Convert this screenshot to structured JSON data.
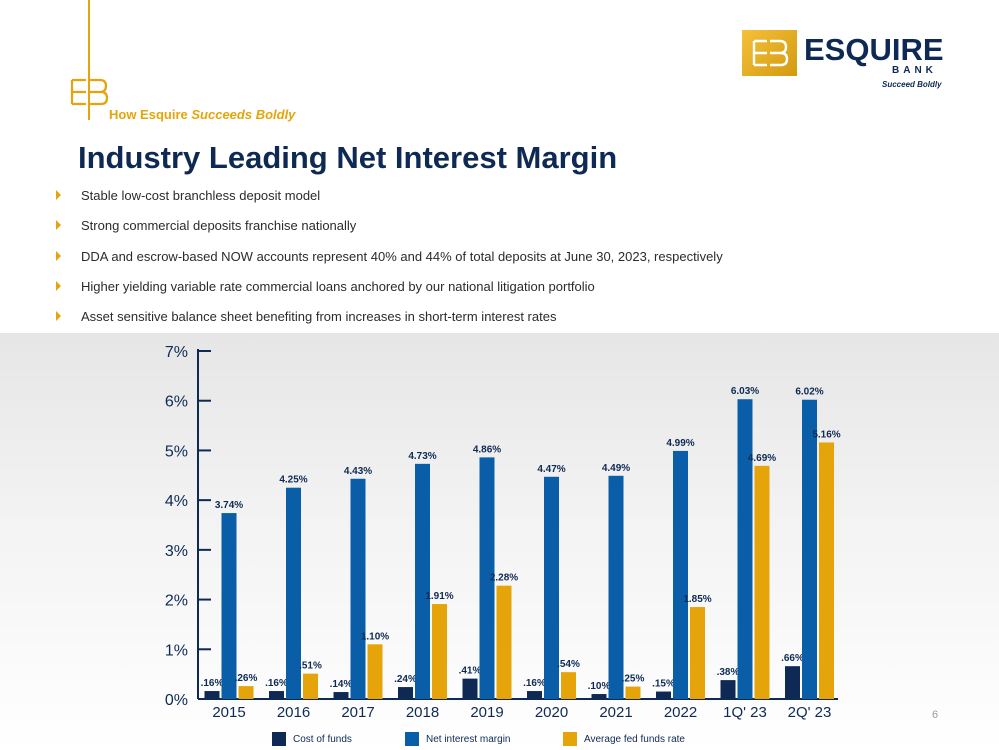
{
  "header": {
    "tagline_prefix": "How Esquire",
    "tagline_emphasis": "Succeeds Boldly",
    "logo_word": "ESQUIRE",
    "logo_bank": "BANK",
    "logo_tagline": "Succeed Boldly"
  },
  "title": "Industry Leading Net Interest Margin",
  "bullets": [
    "Stable low-cost branchless deposit model",
    "Strong commercial deposits franchise nationally",
    "DDA and escrow-based NOW accounts represent 40% and 44% of total deposits at June 30, 2023, respectively",
    "Higher yielding variable rate commercial loans anchored by our national litigation portfolio",
    "Asset sensitive balance sheet benefiting from increases in short-term interest rates"
  ],
  "colors": {
    "navy": "#0e2a54",
    "blue": "#0a5ea8",
    "gold": "#e5a50a"
  },
  "chart_data": {
    "type": "bar",
    "categories": [
      "2015",
      "2016",
      "2017",
      "2018",
      "2019",
      "2020",
      "2021",
      "2022",
      "1Q' 23",
      "2Q' 23"
    ],
    "series": [
      {
        "name": "Cost of funds",
        "values": [
          0.16,
          0.16,
          0.14,
          0.24,
          0.41,
          0.16,
          0.1,
          0.15,
          0.38,
          0.66
        ],
        "labels": [
          ".16%",
          ".16%",
          ".14%",
          ".24%",
          ".41%",
          ".16%",
          ".10%",
          ".15%",
          ".38%",
          ".66%"
        ],
        "color": "#0e2a54"
      },
      {
        "name": "Net interest margin",
        "values": [
          3.74,
          4.25,
          4.43,
          4.73,
          4.86,
          4.47,
          4.49,
          4.99,
          6.03,
          6.02
        ],
        "labels": [
          "3.74%",
          "4.25%",
          "4.43%",
          "4.73%",
          "4.86%",
          "4.47%",
          "4.49%",
          "4.99%",
          "6.03%",
          "6.02%"
        ],
        "color": "#0a5ea8"
      },
      {
        "name": "Average fed funds rate",
        "values": [
          0.26,
          0.51,
          1.1,
          1.91,
          2.28,
          0.54,
          0.25,
          1.85,
          4.69,
          5.16
        ],
        "labels": [
          ".26%",
          ".51%",
          "1.10%",
          "1.91%",
          "2.28%",
          ".54%",
          ".25%",
          "1.85%",
          "4.69%",
          "5.16%"
        ],
        "color": "#e5a50a"
      }
    ],
    "y_ticks": [
      "0%",
      "1%",
      "2%",
      "3%",
      "4%",
      "5%",
      "6%",
      "7%"
    ],
    "ylim": [
      0,
      7
    ],
    "grid": false,
    "legend_position": "bottom"
  },
  "page_number": "6"
}
